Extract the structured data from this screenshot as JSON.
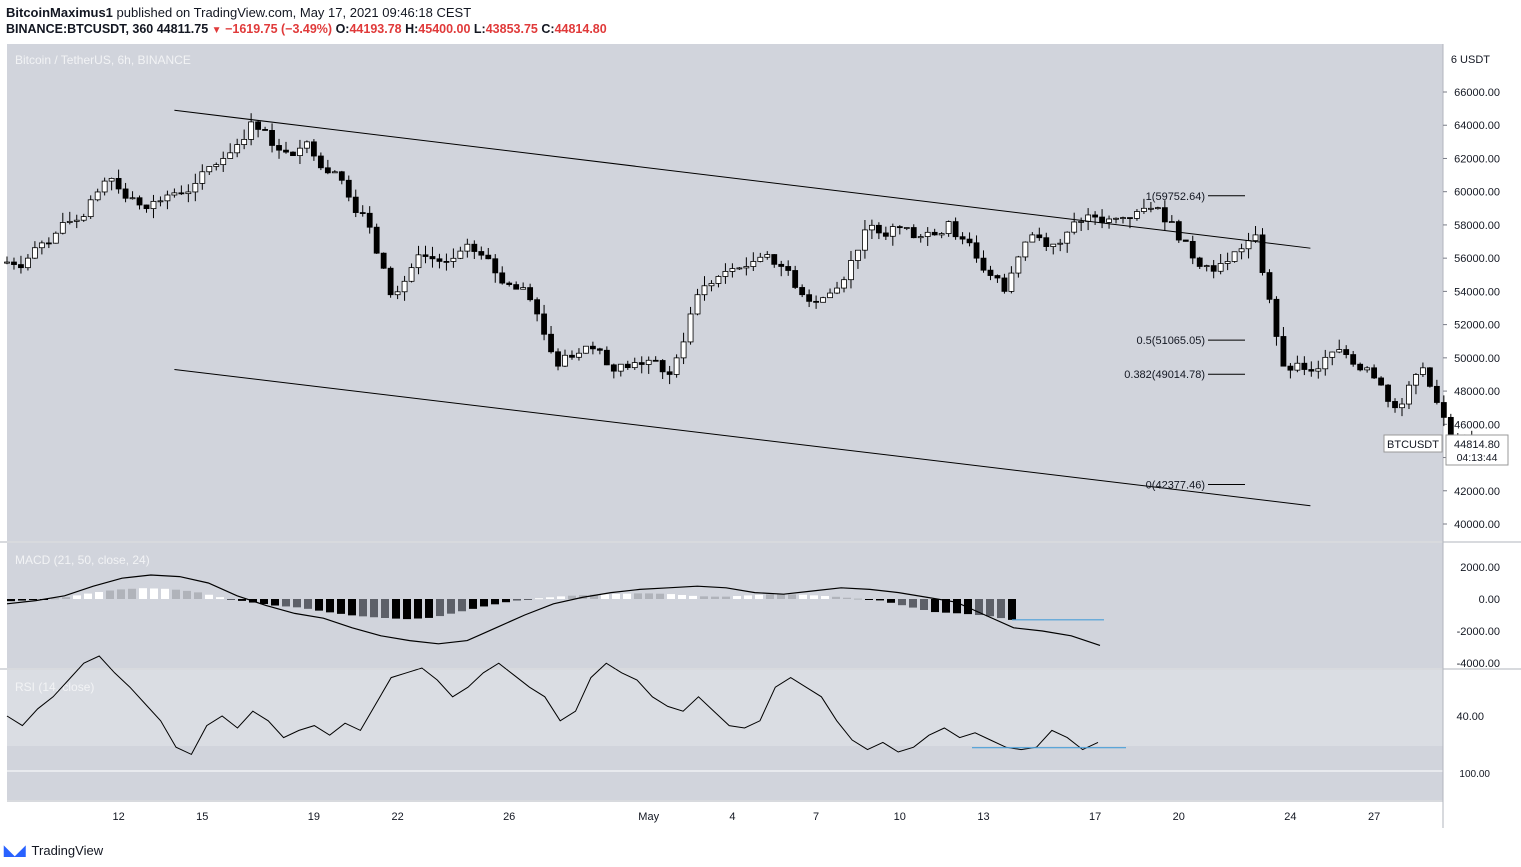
{
  "header": {
    "publisher": "BitcoinMaximus1",
    "published_text": "published on TradingView.com, May 17, 2021 09:46:18 CEST",
    "symbol_line": "BINANCE:BTCUSDT, 360",
    "last": "44811.75",
    "change_arrow": "▼",
    "change": "−1619.75 (−3.49%)",
    "o_label": "O:",
    "o": "44193.78",
    "h_label": "H:",
    "h": "45400.00",
    "l_label": "L:",
    "l": "43853.75",
    "c_label": "C:",
    "c": "44814.80"
  },
  "main_title": "Bitcoin / TetherUS, 6h, BINANCE",
  "currency_label": "USDT",
  "price_tag": {
    "symbol": "BTCUSDT",
    "price": "44814.80",
    "countdown": "04:13:44"
  },
  "macd_title": "MACD (21, 50, close, 24)",
  "rsi_title": "RSI (14, close)",
  "footer": {
    "brand": "TradingView"
  },
  "colors": {
    "background": "#d1d4dc",
    "line": "#000000",
    "rsi_band": "#dadde3",
    "support": "#4a9fd8",
    "red": "#e03a3a"
  },
  "chart_data": [
    {
      "type": "candlestick",
      "title": "Bitcoin / TetherUS, 6h, BINANCE",
      "ylim": [
        39000,
        67000
      ],
      "y_ticks": [
        40000,
        42000,
        44000,
        46000,
        48000,
        50000,
        52000,
        54000,
        56000,
        58000,
        60000,
        62000,
        64000,
        66000
      ],
      "x_tick_labels": [
        "12",
        "15",
        "19",
        "22",
        "26",
        "May",
        "4",
        "7",
        "10",
        "13",
        "17",
        "20",
        "24",
        "27"
      ],
      "x_tick_days": [
        12,
        15,
        19,
        22,
        26,
        31,
        34,
        37,
        40,
        43,
        47,
        50,
        54,
        57
      ],
      "candles_daily_close": [
        56000,
        57500,
        58500,
        60800,
        59200,
        59800,
        60500,
        62000,
        64200,
        62500,
        63000,
        61200,
        58700,
        53800,
        56200,
        55800,
        56400,
        54500,
        53500,
        49500,
        50700,
        49200,
        49600,
        49000,
        53800,
        55200,
        55800,
        55500,
        53400,
        54200,
        57700,
        57900,
        57300,
        58200,
        56000,
        54000,
        57400,
        56900,
        58600,
        58400,
        59000,
        58200,
        55500,
        55800,
        57400,
        49500,
        49200,
        50500,
        49400,
        47000,
        49400,
        45000,
        44814.8
      ],
      "channel_upper": {
        "from": [
          "Apr 14",
          64900
        ],
        "to": [
          "May 24",
          56600
        ]
      },
      "channel_lower": {
        "from": [
          "Apr 14",
          49300
        ],
        "to": [
          "May 24",
          41100
        ]
      },
      "fib_levels": [
        {
          "label": "1(59752.64)",
          "value": 59752.64
        },
        {
          "label": "0.5(51065.05)",
          "value": 51065.05
        },
        {
          "label": "0.382(49014.78)",
          "value": 49014.78
        },
        {
          "label": "0(42377.46)",
          "value": 42377.46
        }
      ]
    },
    {
      "type": "macd",
      "title": "MACD (21, 50, close, 24)",
      "ylim": [
        -4200,
        2800
      ],
      "y_ticks": [
        2000,
        0,
        -2000,
        -4000
      ],
      "macd_line": [
        -300,
        -100,
        200,
        800,
        1300,
        1500,
        1400,
        1000,
        200,
        -400,
        -900,
        -1200,
        -1800,
        -2300,
        -2600,
        -2800,
        -2600,
        -1800,
        -1000,
        -300,
        100,
        400,
        600,
        700,
        800,
        700,
        400,
        300,
        500,
        700,
        600,
        400,
        100,
        -200,
        -1000,
        -1800,
        -2000,
        -2300,
        -2900
      ],
      "signal_line": [
        -1300,
        -1400,
        -1400,
        -1300
      ]
    },
    {
      "type": "rsi",
      "title": "RSI (14, close)",
      "ylim": [
        23,
        68
      ],
      "y_ticks": [
        40
      ],
      "rsi_values": [
        40,
        36,
        43,
        48,
        55,
        62,
        65,
        58,
        52,
        45,
        38,
        27,
        24,
        36,
        40,
        35,
        42,
        38,
        31,
        34,
        36,
        32,
        37,
        34,
        45,
        56,
        58,
        60,
        55,
        48,
        52,
        58,
        62,
        57,
        52,
        48,
        38,
        42,
        56,
        62,
        58,
        55,
        48,
        44,
        42,
        48,
        42,
        36,
        35,
        38,
        52,
        56,
        52,
        48,
        38,
        30,
        26,
        29,
        25,
        27,
        32,
        35,
        31,
        33,
        30,
        27,
        26,
        27,
        34,
        31,
        26,
        29
      ],
      "support_level": 26.8
    }
  ]
}
